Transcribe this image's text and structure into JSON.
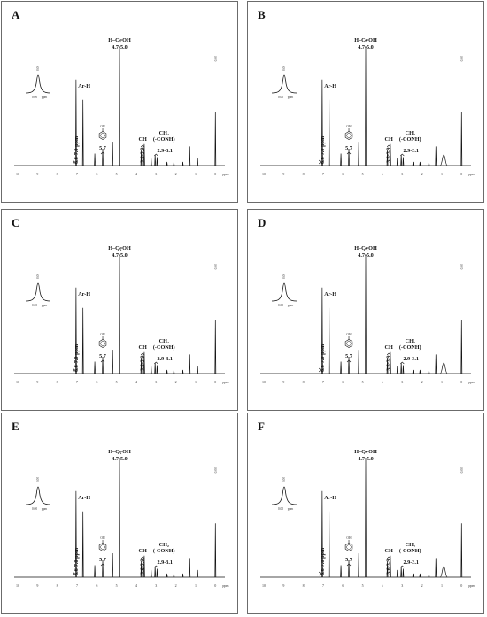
{
  "figure": {
    "panels": [
      {
        "letter": "A",
        "variant": "sharp"
      },
      {
        "letter": "B",
        "variant": "broad"
      },
      {
        "letter": "C",
        "variant": "sharp"
      },
      {
        "letter": "D",
        "variant": "broad"
      },
      {
        "letter": "E",
        "variant": "sharp"
      },
      {
        "letter": "F",
        "variant": "broad"
      }
    ]
  },
  "chart_data": {
    "type": "line",
    "x_axis": {
      "reversed": true,
      "xlim": [
        10,
        -0.3
      ],
      "ticks": [
        "10",
        "9",
        "8",
        "7",
        "6",
        "5",
        "4",
        "3",
        "2",
        "1",
        "0"
      ],
      "unit_label": "ppm"
    },
    "annotations": {
      "hcoh": "H–C=OH",
      "hcoh_range": "4.7-5.0",
      "arh": "Ar-H",
      "arh_range": "6.6-7.0 ppm",
      "v57": "5.7",
      "ch": "CH",
      "ch_range": "3.6-3.9",
      "ch2": "CH₂",
      "ch2_sub": "(-CONH)",
      "ch2_range": "2.9-3.1",
      "phenol_label": "OH",
      "tms_label": "0.00",
      "inset_x": "0.00",
      "inset_unit": "ppm"
    },
    "peaks": [
      {
        "ppm": 7.05,
        "height": 0.72
      },
      {
        "ppm": 6.7,
        "height": 0.55
      },
      {
        "ppm": 6.1,
        "height": 0.1
      },
      {
        "ppm": 5.7,
        "height": 0.14
      },
      {
        "ppm": 5.2,
        "height": 0.2
      },
      {
        "ppm": 4.85,
        "height": 1.0
      },
      {
        "ppm": 3.75,
        "height": 0.13
      },
      {
        "ppm": 3.6,
        "height": 0.18
      },
      {
        "ppm": 3.25,
        "height": 0.06
      },
      {
        "ppm": 3.05,
        "height": 0.09
      },
      {
        "ppm": 2.95,
        "height": 0.07
      },
      {
        "ppm": 2.45,
        "height": 0.03
      },
      {
        "ppm": 2.1,
        "height": 0.03
      },
      {
        "ppm": 1.65,
        "height": 0.03
      },
      {
        "ppm": 1.3,
        "height": 0.16
      },
      {
        "ppm": 0.9,
        "height": 0.06
      },
      {
        "ppm": 0.0,
        "height": 0.45
      }
    ]
  }
}
